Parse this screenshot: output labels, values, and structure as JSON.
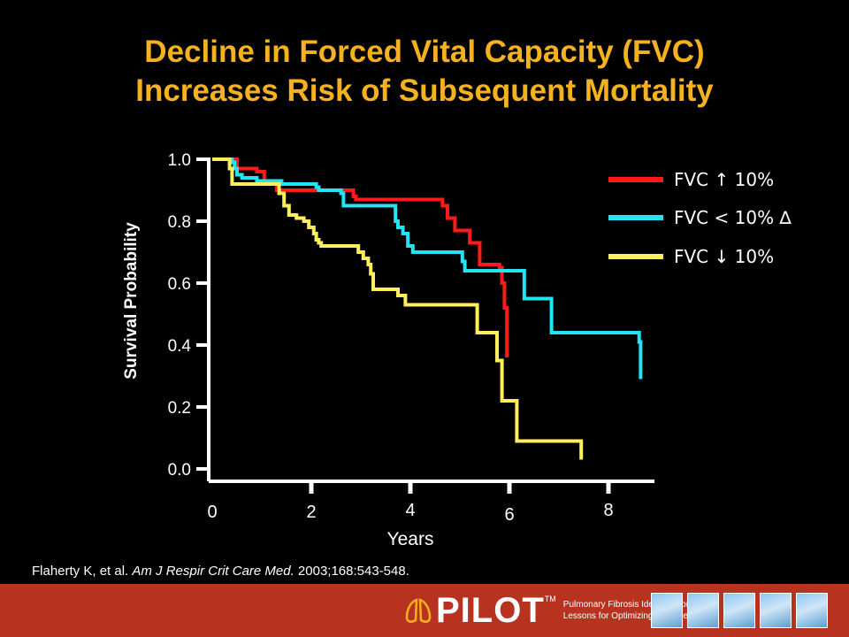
{
  "title_line1": "Decline in Forced Vital Capacity (FVC)",
  "title_line2": "Increases Risk of Subsequent Mortality",
  "chart_data": {
    "type": "line",
    "step": true,
    "xlabel": "Years",
    "ylabel": "Survival Probability",
    "x_ticks": [
      0,
      2,
      4,
      6,
      8
    ],
    "y_ticks": [
      "0.0",
      "0.2",
      "0.4",
      "0.6",
      "0.8",
      "1.0"
    ],
    "xlim": [
      0,
      9
    ],
    "ylim": [
      0,
      1
    ],
    "legend_position": "top-right",
    "series": [
      {
        "name": "FVC ↑ 10%",
        "color": "#ff1a1a",
        "x": [
          0,
          0.5,
          0.9,
          1.05,
          1.3,
          1.4,
          2.8,
          2.85,
          2.9,
          2.95,
          3.0,
          4.6,
          4.65,
          4.75,
          4.9,
          5.05,
          5.2,
          5.4,
          5.8,
          5.85,
          5.9,
          5.95
        ],
        "y": [
          1.0,
          0.97,
          0.96,
          0.93,
          0.9,
          0.9,
          0.9,
          0.88,
          0.87,
          0.87,
          0.87,
          0.87,
          0.85,
          0.81,
          0.77,
          0.77,
          0.73,
          0.66,
          0.65,
          0.6,
          0.52,
          0.36
        ]
      },
      {
        "name": "FVC < 10% ∆",
        "color": "#22e4f5",
        "x": [
          0,
          0.4,
          0.45,
          0.5,
          0.6,
          0.9,
          1.4,
          2.1,
          2.15,
          2.6,
          2.65,
          3.7,
          3.75,
          3.85,
          3.95,
          4.05,
          5.0,
          5.05,
          5.1,
          6.2,
          6.3,
          6.8,
          6.85,
          8.6,
          8.62,
          8.65
        ],
        "y": [
          1.0,
          0.99,
          0.97,
          0.95,
          0.94,
          0.93,
          0.92,
          0.91,
          0.9,
          0.89,
          0.85,
          0.8,
          0.78,
          0.76,
          0.72,
          0.7,
          0.7,
          0.67,
          0.64,
          0.64,
          0.55,
          0.55,
          0.44,
          0.44,
          0.41,
          0.29
        ]
      },
      {
        "name": "FVC ↓ 10%",
        "color": "#ffef5c",
        "x": [
          0,
          0.35,
          0.4,
          1.3,
          1.35,
          1.45,
          1.55,
          1.7,
          1.85,
          1.95,
          2.05,
          2.1,
          2.15,
          2.2,
          2.9,
          2.95,
          3.05,
          3.15,
          3.2,
          3.25,
          3.6,
          3.75,
          3.9,
          5.3,
          5.35,
          5.7,
          5.75,
          5.85,
          6.1,
          6.15,
          7.4,
          7.45
        ],
        "y": [
          1.0,
          0.97,
          0.92,
          0.92,
          0.89,
          0.85,
          0.82,
          0.81,
          0.8,
          0.78,
          0.76,
          0.74,
          0.73,
          0.72,
          0.72,
          0.7,
          0.68,
          0.66,
          0.63,
          0.58,
          0.58,
          0.56,
          0.53,
          0.53,
          0.44,
          0.44,
          0.35,
          0.22,
          0.22,
          0.09,
          0.09,
          0.03
        ]
      }
    ]
  },
  "citation": {
    "authors": "Flaherty K, et al. ",
    "journal": "Am J Respir Crit Care Med.",
    "details": " 2003;168:543-548."
  },
  "footer": {
    "logo_text": "PILOT",
    "trademark": "TM",
    "tagline_line1": "Pulmonary Fibrosis Identification:",
    "tagline_line2": "Lessons for Optimizing Treatment",
    "footer_color": "#b8331f"
  }
}
